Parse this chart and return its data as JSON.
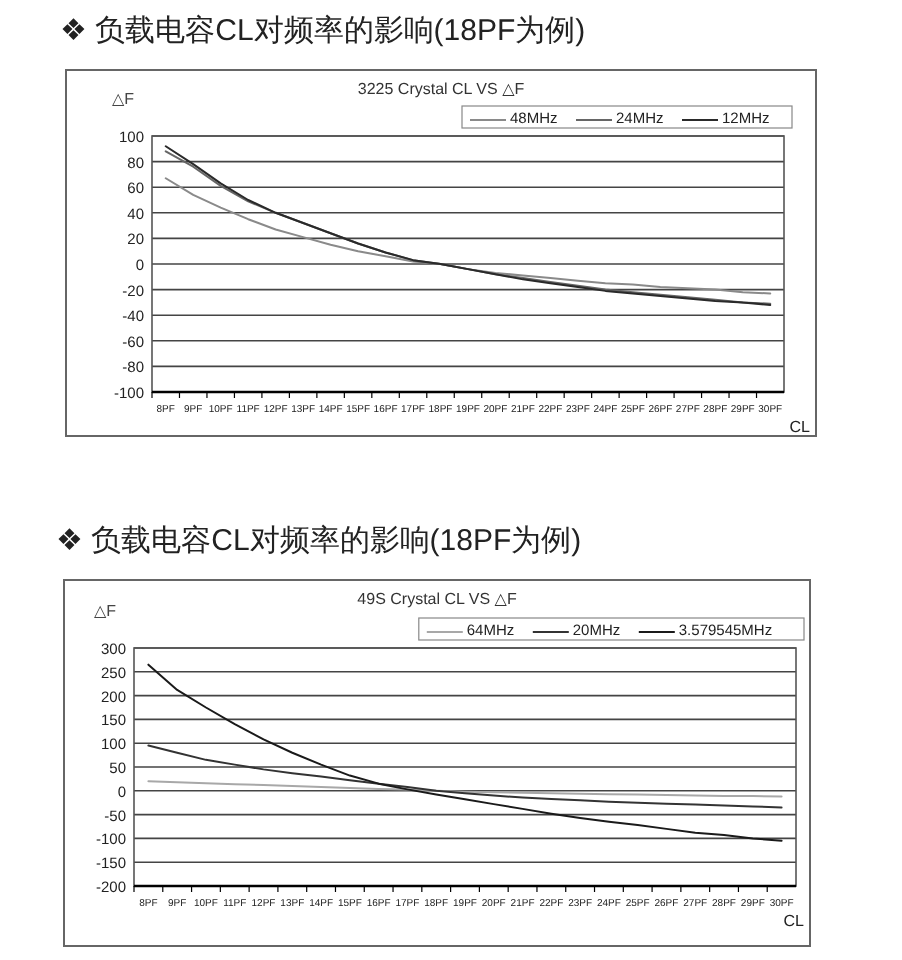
{
  "chart_data": [
    {
      "type": "line",
      "title": "❖  负载电容CL对频率的影响(18PF为例)",
      "subtitle": "3225 Crystal CL VS △F",
      "ylabel": "△F",
      "xlabel": "CL",
      "categories": [
        "8PF",
        "9PF",
        "10PF",
        "11PF",
        "12PF",
        "13PF",
        "14PF",
        "15PF",
        "16PF",
        "17PF",
        "18PF",
        "19PF",
        "20PF",
        "21PF",
        "22PF",
        "23PF",
        "24PF",
        "25PF",
        "26PF",
        "27PF",
        "28PF",
        "29PF",
        "30PF"
      ],
      "series": [
        {
          "name": "48MHz",
          "color": "#8a8a8a",
          "values": [
            67,
            54,
            44,
            35,
            27,
            21,
            15,
            10,
            6,
            2,
            0,
            -4,
            -7,
            -9,
            -11,
            -13,
            -15,
            -16,
            -18,
            -19,
            -20,
            -22,
            -23
          ]
        },
        {
          "name": "24MHz",
          "color": "#666666",
          "values": [
            88,
            76,
            61,
            49,
            40,
            32,
            24,
            16,
            9,
            3,
            0,
            -4,
            -8,
            -11,
            -14,
            -17,
            -20,
            -22,
            -24,
            -26,
            -28,
            -30,
            -31
          ]
        },
        {
          "name": "12MHz",
          "color": "#2a2a2a",
          "values": [
            92,
            78,
            63,
            50,
            40,
            32,
            24,
            16,
            9,
            3,
            0,
            -4,
            -8,
            -12,
            -15,
            -18,
            -21,
            -23,
            -25,
            -27,
            -29,
            -30,
            -32
          ]
        }
      ],
      "ylim": [
        -100,
        100
      ],
      "yticks": [
        -100,
        -80,
        -60,
        -40,
        -20,
        0,
        20,
        40,
        60,
        80,
        100
      ],
      "grid": "y",
      "legend": "top right",
      "marker": "none",
      "line_style": "solid"
    },
    {
      "type": "line",
      "title": "❖ 负载电容CL对频率的影响(18PF为例)",
      "subtitle": "49S Crystal CL VS △F",
      "ylabel": "△F",
      "xlabel": "CL",
      "categories": [
        "8PF",
        "9PF",
        "10PF",
        "11PF",
        "12PF",
        "13PF",
        "14PF",
        "15PF",
        "16PF",
        "17PF",
        "18PF",
        "19PF",
        "20PF",
        "21PF",
        "22PF",
        "23PF",
        "24PF",
        "25PF",
        "26PF",
        "27PF",
        "28PF",
        "29PF",
        "30PF"
      ],
      "series": [
        {
          "name": "64MHz",
          "color": "#a8a8a8",
          "values": [
            20,
            18,
            16,
            14,
            12,
            10,
            8,
            6,
            4,
            3,
            0,
            -2,
            -3,
            -4,
            -5,
            -6,
            -7,
            -8,
            -9,
            -10,
            -11,
            -11,
            -12
          ]
        },
        {
          "name": "20MHz",
          "color": "#333333",
          "values": [
            95,
            80,
            65,
            55,
            45,
            37,
            30,
            22,
            15,
            8,
            0,
            -5,
            -10,
            -14,
            -17,
            -20,
            -23,
            -25,
            -27,
            -29,
            -31,
            -33,
            -35
          ]
        },
        {
          "name": "3.579545MHz",
          "color": "#1a1a1a",
          "values": [
            265,
            212,
            175,
            140,
            108,
            80,
            55,
            32,
            15,
            3,
            -8,
            -18,
            -28,
            -38,
            -48,
            -57,
            -65,
            -72,
            -80,
            -88,
            -93,
            -100,
            -105
          ]
        }
      ],
      "ylim": [
        -200,
        300
      ],
      "yticks": [
        -200,
        -150,
        -100,
        -50,
        0,
        50,
        100,
        150,
        200,
        250,
        300
      ],
      "grid": "y",
      "legend": "top right",
      "marker": "none",
      "line_style": "solid"
    }
  ]
}
